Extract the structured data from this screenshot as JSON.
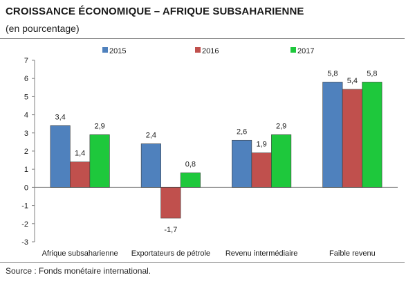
{
  "header": {
    "title": "CROISSANCE ÉCONOMIQUE – AFRIQUE SUBSAHARIENNE",
    "subtitle": "(en pourcentage)"
  },
  "footer": {
    "source": "Source :  Fonds monétaire international."
  },
  "colors": {
    "s2015": "#4f81bd",
    "s2016": "#c0504d",
    "s2017": "#1ec83c",
    "axis": "#808080",
    "text": "#1a1a1a"
  },
  "chart_data": {
    "type": "bar",
    "categories": [
      "Afrique subsaharienne",
      "Exportateurs de pétrole",
      "Revenu intermédiaire",
      "Faible revenu"
    ],
    "series": [
      {
        "name": "2015",
        "values": [
          3.4,
          2.4,
          2.6,
          5.8
        ],
        "labels": [
          "3,4",
          "2,4",
          "2,6",
          "5,8"
        ]
      },
      {
        "name": "2016",
        "values": [
          1.4,
          -1.7,
          1.9,
          5.4
        ],
        "labels": [
          "1,4",
          "-1,7",
          "1,9",
          "5,4"
        ]
      },
      {
        "name": "2017",
        "values": [
          2.9,
          0.8,
          2.9,
          5.8
        ],
        "labels": [
          "2,9",
          "0,8",
          "2,9",
          "5,8"
        ]
      }
    ],
    "ylim": [
      -3,
      7
    ],
    "yticks": [
      -3,
      -2,
      -1,
      0,
      1,
      2,
      3,
      4,
      5,
      6,
      7
    ],
    "grid": false,
    "legend": "top"
  }
}
